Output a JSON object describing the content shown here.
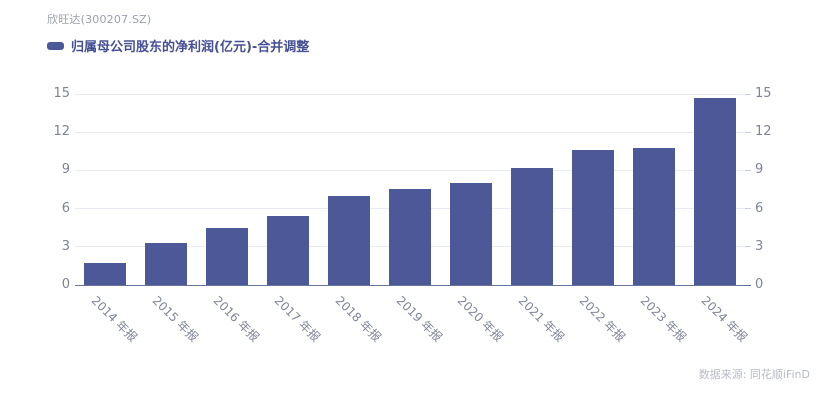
{
  "header": {
    "title": "欣旺达(300207.SZ)"
  },
  "legend": {
    "label": "归属母公司股东的净利润(亿元)-合并调整",
    "color": "#4d5899"
  },
  "footer": {
    "source": "数据来源: 同花顺iFinD"
  },
  "chart_data": {
    "type": "bar",
    "title": "欣旺达(300207.SZ)",
    "series_name": "归属母公司股东的净利润(亿元)-合并调整",
    "categories": [
      "2014 年报",
      "2015 年报",
      "2016 年报",
      "2017 年报",
      "2018 年报",
      "2019 年报",
      "2020 年报",
      "2021 年报",
      "2022 年报",
      "2023 年报",
      "2024 年报"
    ],
    "values": [
      1.69,
      3.26,
      4.5,
      5.39,
      7.01,
      7.51,
      8.02,
      9.16,
      10.64,
      10.76,
      14.68
    ],
    "xlabel": "",
    "ylabel": "",
    "ylim": [
      0,
      15
    ],
    "yticks": [
      0,
      3,
      6,
      9,
      12,
      15
    ],
    "dual_y_axis": true,
    "grid": true,
    "bar_color": "#4d5899",
    "legend_position": "top-left"
  }
}
